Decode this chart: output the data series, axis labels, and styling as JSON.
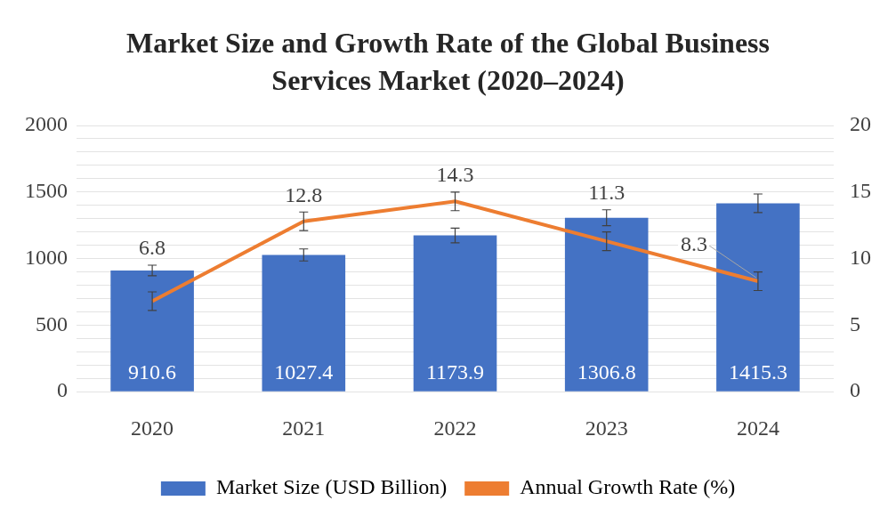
{
  "chart_data": {
    "type": "bar",
    "title": "Market Size and Growth Rate of the Global Business Services Market (2020–2024)",
    "categories": [
      "2020",
      "2021",
      "2022",
      "2023",
      "2024"
    ],
    "series": [
      {
        "name": "Market Size (USD Billion)",
        "color": "#4472c4",
        "values": [
          910.6,
          1027.4,
          1173.9,
          1306.8,
          1415.3
        ],
        "errors": [
          40,
          45,
          55,
          60,
          70
        ]
      },
      {
        "name": "Annual Growth Rate (%)",
        "type": "line",
        "axis": "y2",
        "color": "#ed7d31",
        "values": [
          6.8,
          12.8,
          14.3,
          11.3,
          8.3
        ],
        "errors": [
          0.7,
          0.7,
          0.7,
          0.7,
          0.7
        ]
      }
    ],
    "ylim": [
      0,
      2000
    ],
    "yticks": [
      0,
      {
        "value": 100,
        "label": null
      },
      {
        "value": 200,
        "label": null
      },
      {
        "value": 300,
        "label": null
      },
      {
        "value": 400,
        "label": null
      },
      500,
      {
        "value": 600,
        "label": null
      },
      {
        "value": 700,
        "label": null
      },
      {
        "value": 800,
        "label": null
      },
      {
        "value": 900,
        "label": null
      },
      1000,
      {
        "value": 1100,
        "label": null
      },
      {
        "value": 1200,
        "label": null
      },
      {
        "value": 1300,
        "label": null
      },
      {
        "value": 1400,
        "label": null
      },
      1500,
      {
        "value": 1600,
        "label": null
      },
      {
        "value": 1700,
        "label": null
      },
      {
        "value": 1800,
        "label": null
      },
      {
        "value": 1900,
        "label": null
      },
      2000
    ],
    "y2lim": [
      0,
      20
    ],
    "y2ticks": [
      0,
      5,
      10,
      15,
      20
    ],
    "grid": "y",
    "legend": "bottom",
    "data_labels": true,
    "marker": "none"
  }
}
